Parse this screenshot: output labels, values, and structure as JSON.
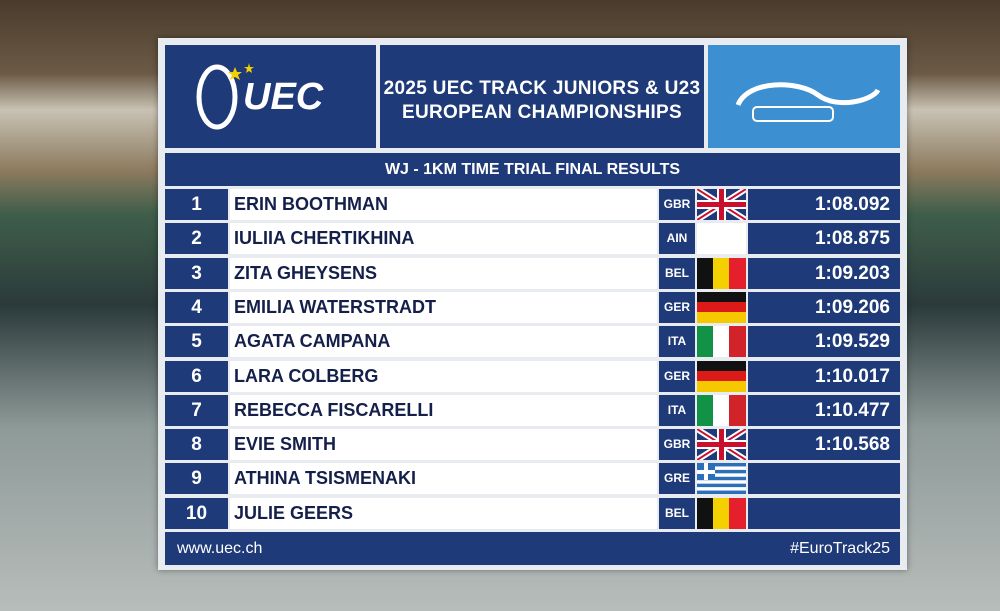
{
  "header": {
    "logo_text": "UEC",
    "title_lines": [
      "2025 UEC TRACK JUNIORS & U23",
      "EUROPEAN CHAMPIONSHIPS"
    ]
  },
  "subtitle": "WJ - 1KM TIME TRIAL FINAL  RESULTS",
  "results": [
    {
      "rank": "1",
      "name": "ERIN BOOTHMAN",
      "nation": "GBR",
      "time": "1:08.092"
    },
    {
      "rank": "2",
      "name": "IULIIA CHERTIKHINA",
      "nation": "AIN",
      "time": "1:08.875"
    },
    {
      "rank": "3",
      "name": "ZITA GHEYSENS",
      "nation": "BEL",
      "time": "1:09.203"
    },
    {
      "rank": "4",
      "name": "EMILIA WATERSTRADT",
      "nation": "GER",
      "time": "1:09.206"
    },
    {
      "rank": "5",
      "name": "AGATA CAMPANA",
      "nation": "ITA",
      "time": "1:09.529"
    },
    {
      "rank": "6",
      "name": "LARA COLBERG",
      "nation": "GER",
      "time": "1:10.017"
    },
    {
      "rank": "7",
      "name": "REBECCA FISCARELLI",
      "nation": "ITA",
      "time": "1:10.477"
    },
    {
      "rank": "8",
      "name": "EVIE SMITH",
      "nation": "GBR",
      "time": "1:10.568"
    },
    {
      "rank": "9",
      "name": "ATHINA TSISMENAKI",
      "nation": "GRE",
      "time": null
    },
    {
      "rank": "10",
      "name": "JULIE GEERS",
      "nation": "BEL",
      "time": null
    }
  ],
  "footer": {
    "url": "www.uec.ch",
    "hashtag": "#EuroTrack25"
  }
}
